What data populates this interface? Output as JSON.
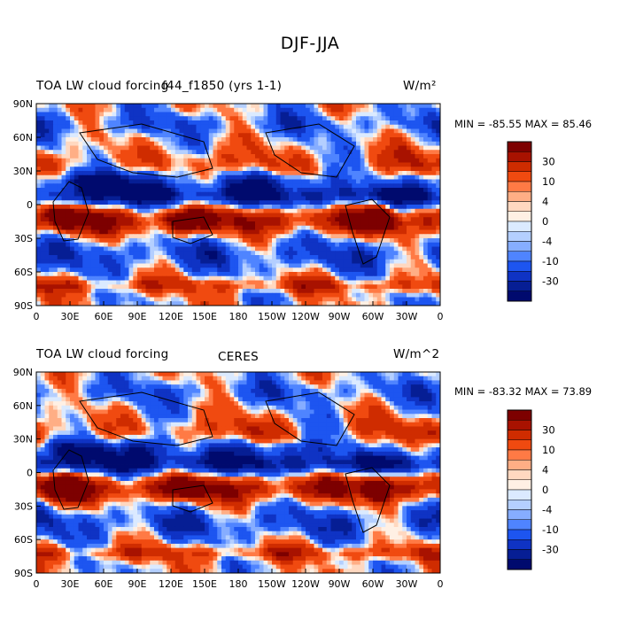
{
  "main_title": "DJF-JJA",
  "color_scale": {
    "colors": [
      "#7d0000",
      "#a81200",
      "#cf2c00",
      "#f04a10",
      "#ff7a45",
      "#ffae85",
      "#ffd8c0",
      "#fff0e4",
      "#dbeaff",
      "#b4cfff",
      "#86adff",
      "#4f84ff",
      "#1d55f0",
      "#0f33c4",
      "#061e94",
      "#000a6e"
    ],
    "labels": [
      "30",
      "10",
      "4",
      "0",
      "-4",
      "-10",
      "-30"
    ]
  },
  "chart_data": [
    {
      "type": "heatmap",
      "title_left": "TOA LW cloud forcing",
      "title_center": "f44_f1850 (yrs 1-1)",
      "units": "W/m²",
      "min_max_text": "MIN = -85.55 MAX =  85.46",
      "min": -85.55,
      "max": 85.46,
      "xlabels": [
        "0",
        "30E",
        "60E",
        "90E",
        "120E",
        "150E",
        "180",
        "150W",
        "120W",
        "90W",
        "60W",
        "30W",
        "0"
      ],
      "ylabels": [
        "90N",
        "60N",
        "30N",
        "0",
        "30S",
        "60S",
        "90S"
      ],
      "xlim": [
        0,
        360
      ],
      "ylim": [
        -90,
        90
      ]
    },
    {
      "type": "heatmap",
      "title_left": "TOA LW cloud forcing",
      "title_center": "CERES",
      "units": "W/m^2",
      "min_max_text": "MIN = -83.32 MAX =  73.89",
      "min": -83.32,
      "max": 73.89,
      "xlabels": [
        "0",
        "30E",
        "60E",
        "90E",
        "120E",
        "150E",
        "180",
        "150W",
        "120W",
        "90W",
        "60W",
        "30W",
        "0"
      ],
      "ylabels": [
        "90N",
        "60N",
        "30N",
        "0",
        "30S",
        "60S",
        "90S"
      ],
      "xlim": [
        0,
        360
      ],
      "ylim": [
        -90,
        90
      ]
    }
  ]
}
